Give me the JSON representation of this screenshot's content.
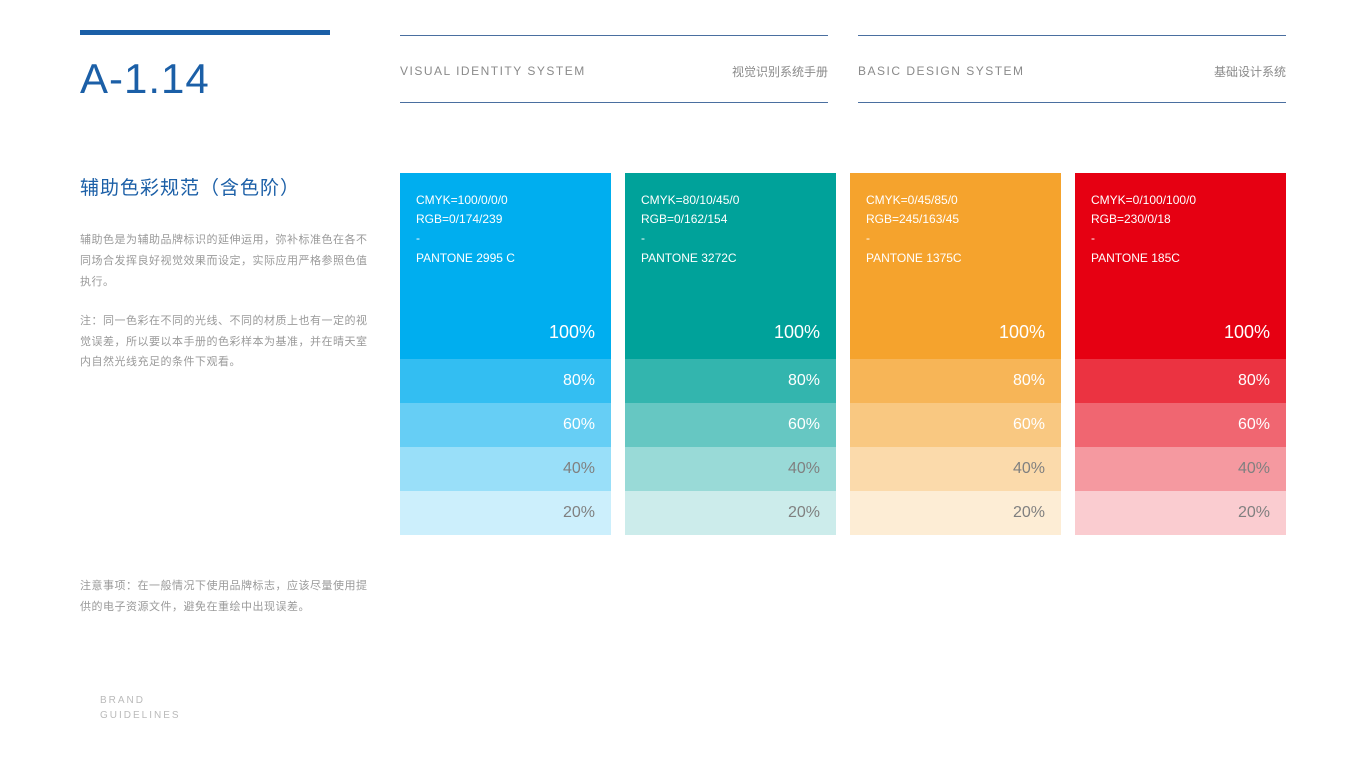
{
  "section_number": "A-1.14",
  "header_blocks": [
    {
      "en": "VISUAL IDENTITY SYSTEM",
      "cn": "视觉识别系统手册"
    },
    {
      "en": "BASIC DESIGN SYSTEM",
      "cn": "基础设计系统"
    }
  ],
  "title_cn": "辅助色彩规范（含色阶）",
  "description_1": "辅助色是为辅助品牌标识的延伸运用，弥补标准色在各不同场合发挥良好视觉效果而设定，实际应用严格参照色值执行。",
  "description_2": "注：同一色彩在不同的光线、不同的材质上也有一定的视觉误差，所以要以本手册的色彩样本为基准，并在晴天室内自然光线充足的条件下观看。",
  "footer_note": "注意事项：在一般情况下使用品牌标志，应该尽量使用提供的电子资源文件，避免在重绘中出现误差。",
  "brand_footer_1": "BRAND",
  "brand_footer_2": "GUIDELINES",
  "step_labels": [
    "100%",
    "80%",
    "60%",
    "40%",
    "20%"
  ],
  "step_opacities": [
    1.0,
    0.8,
    0.6,
    0.4,
    0.2
  ],
  "step_text_light": "#ffffff",
  "step_text_dark": "#808080",
  "dark_text_threshold_index": 3,
  "swatches": [
    {
      "cmyk": "CMYK=100/0/0/0",
      "rgb_label": "RGB=0/174/239",
      "dash": "-",
      "pantone": "PANTONE 2995 C",
      "base_rgb": [
        0,
        174,
        239
      ]
    },
    {
      "cmyk": "CMYK=80/10/45/0",
      "rgb_label": "RGB=0/162/154",
      "dash": "-",
      "pantone": "PANTONE 3272C",
      "base_rgb": [
        0,
        162,
        154
      ]
    },
    {
      "cmyk": "CMYK=0/45/85/0",
      "rgb_label": "RGB=245/163/45",
      "dash": "-",
      "pantone": "PANTONE 1375C",
      "base_rgb": [
        245,
        163,
        45
      ]
    },
    {
      "cmyk": "CMYK=0/100/100/0",
      "rgb_label": "RGB=230/0/18",
      "dash": "-",
      "pantone": "PANTONE 185C",
      "base_rgb": [
        230,
        0,
        18
      ]
    }
  ]
}
